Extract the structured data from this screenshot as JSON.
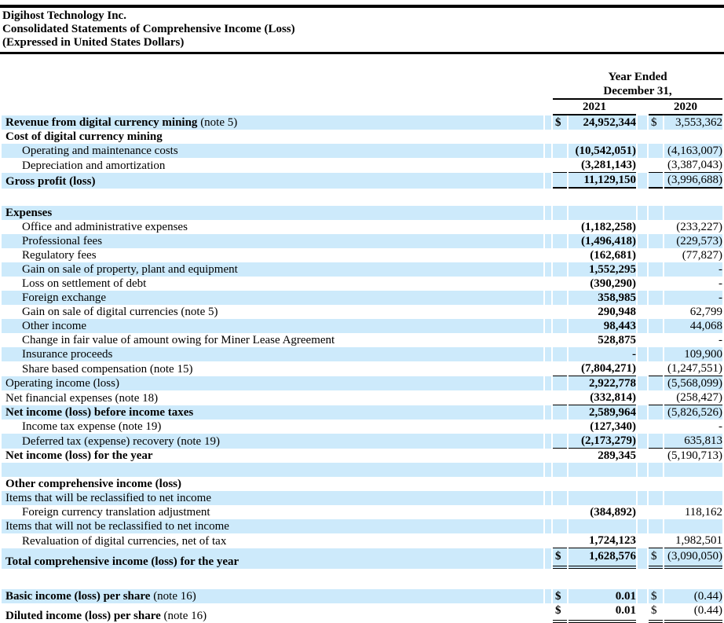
{
  "title": {
    "company": "Digihost Technology Inc.",
    "statement": "Consolidated Statements of Comprehensive Income (Loss)",
    "currency_note": "(Expressed in United States Dollars)"
  },
  "colors": {
    "highlight": "#cdeafb",
    "text": "#000000",
    "rule": "#000000"
  },
  "table": {
    "period_header_line1": "Year Ended",
    "period_header_line2": "December 31,",
    "columns": [
      "2021",
      "2020"
    ],
    "rows": [
      {
        "label": "Revenue from digital currency mining",
        "note": " (note 5)",
        "bold": true,
        "hl": true,
        "d1": "$",
        "v1": "24,952,344",
        "d2": "$",
        "v2": "3,553,362"
      },
      {
        "label": "Cost of digital currency mining",
        "bold": true
      },
      {
        "label": "Operating and maintenance costs",
        "indent": true,
        "hl": true,
        "v1": "(10,542,051)",
        "v2": "(4,163,007)"
      },
      {
        "label": "Depreciation and amortization",
        "indent": true,
        "v1": "(3,281,143)",
        "v2": "(3,387,043)",
        "u": "s"
      },
      {
        "label": "Gross profit (loss)",
        "bold": true,
        "hl": true,
        "v1": "11,129,150",
        "v2": "(3,996,688)",
        "u": "t"
      },
      {
        "blank": true,
        "h": 22
      },
      {
        "label": "Expenses",
        "bold": true,
        "hl": true
      },
      {
        "label": "Office and administrative expenses",
        "indent": true,
        "v1": "(1,182,258)",
        "v2": "(233,227)"
      },
      {
        "label": "Professional fees",
        "indent": true,
        "hl": true,
        "v1": "(1,496,418)",
        "v2": "(229,573)"
      },
      {
        "label": "Regulatory fees",
        "indent": true,
        "v1": "(162,681)",
        "v2": "(77,827)"
      },
      {
        "label": "Gain on sale of property, plant and equipment",
        "indent": true,
        "hl": true,
        "v1": "1,552,295",
        "v2": "-"
      },
      {
        "label": "Loss on settlement of debt",
        "indent": true,
        "v1": "(390,290)",
        "v2": "-"
      },
      {
        "label": "Foreign exchange",
        "indent": true,
        "hl": true,
        "v1": "358,985",
        "v2": "-"
      },
      {
        "label": "Gain on sale of digital currencies (note 5)",
        "indent": true,
        "v1": "290,948",
        "v2": "62,799"
      },
      {
        "label": "Other income",
        "indent": true,
        "hl": true,
        "v1": "98,443",
        "v2": "44,068"
      },
      {
        "label": "Change in fair value of amount owing for Miner Lease Agreement",
        "indent": true,
        "v1": "528,875",
        "v2": "-"
      },
      {
        "label": "Insurance proceeds",
        "indent": true,
        "hl": true,
        "v1": "-",
        "v2": "109,900"
      },
      {
        "label": "Share based compensation (note 15)",
        "indent": true,
        "v1": "(7,804,271)",
        "v2": "(1,247,551)",
        "u": "s"
      },
      {
        "label": "Operating income (loss)",
        "hl": true,
        "v1": "2,922,778",
        "v2": "(5,568,099)"
      },
      {
        "label": "Net financial expenses (note 18)",
        "v1": "(332,814)",
        "v2": "(258,427)",
        "u": "s"
      },
      {
        "label": "Net income (loss) before income taxes",
        "bold": true,
        "hl": true,
        "v1": "2,589,964",
        "v2": "(5,826,526)"
      },
      {
        "label": "Income tax expense (note 19)",
        "indent": true,
        "v1": "(127,340)",
        "v2": "-"
      },
      {
        "label": "Deferred tax (expense) recovery (note 19)",
        "indent": true,
        "hl": true,
        "v1": "(2,173,279)",
        "v2": "635,813",
        "u": "s"
      },
      {
        "label": "Net income (loss) for the year",
        "bold": true,
        "v1": "289,345",
        "v2": "(5,190,713)"
      },
      {
        "blank": true,
        "hl": true
      },
      {
        "label": "Other comprehensive income (loss)",
        "bold": true
      },
      {
        "label": "Items that will be reclassified to net income",
        "hl": true
      },
      {
        "label": "Foreign currency translation adjustment",
        "indent": true,
        "v1": "(384,892)",
        "v2": "118,162"
      },
      {
        "label": "Items that will not be reclassified to net income",
        "hl": true
      },
      {
        "label": "Revaluation of digital currencies, net of tax",
        "indent": true,
        "v1": "1,724,123",
        "v2": "1,982,501",
        "u": "s"
      },
      {
        "label": "Total comprehensive income (loss) for the year",
        "bold": true,
        "hl": true,
        "d1": "$",
        "v1": "1,628,576",
        "d2": "$",
        "v2": "(3,090,050)",
        "u": "d",
        "h": 26
      },
      {
        "blank": true,
        "h": 26
      },
      {
        "label": "Basic income (loss) per share",
        "note": " (note 16)",
        "bold": true,
        "hl": true,
        "d1": "$",
        "v1": "0.01",
        "d2": "$",
        "v2": "(0.44)"
      },
      {
        "label": "Diluted income (loss) per share",
        "note": " (note 16)",
        "bold": true,
        "d1": "$",
        "v1": "0.01",
        "d2": "$",
        "v2": "(0.44)",
        "u": "d",
        "h": 24
      }
    ]
  }
}
